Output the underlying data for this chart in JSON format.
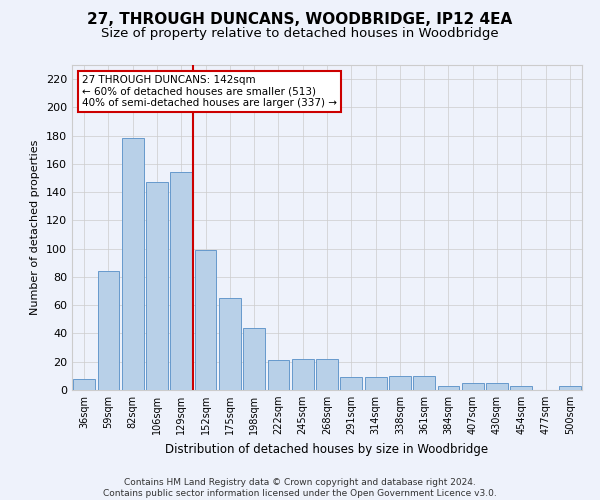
{
  "title": "27, THROUGH DUNCANS, WOODBRIDGE, IP12 4EA",
  "subtitle": "Size of property relative to detached houses in Woodbridge",
  "xlabel": "Distribution of detached houses by size in Woodbridge",
  "ylabel": "Number of detached properties",
  "categories": [
    "36sqm",
    "59sqm",
    "82sqm",
    "106sqm",
    "129sqm",
    "152sqm",
    "175sqm",
    "198sqm",
    "222sqm",
    "245sqm",
    "268sqm",
    "291sqm",
    "314sqm",
    "338sqm",
    "361sqm",
    "384sqm",
    "407sqm",
    "430sqm",
    "454sqm",
    "477sqm",
    "500sqm"
  ],
  "values": [
    8,
    84,
    178,
    147,
    154,
    99,
    65,
    44,
    21,
    22,
    22,
    9,
    9,
    10,
    10,
    3,
    5,
    5,
    3,
    0,
    3
  ],
  "bar_color": "#b8d0e8",
  "bar_edge_color": "#6699cc",
  "vline_x": 4.5,
  "vline_color": "#cc0000",
  "annotation_text": "27 THROUGH DUNCANS: 142sqm\n← 60% of detached houses are smaller (513)\n40% of semi-detached houses are larger (337) →",
  "annotation_box_color": "#ffffff",
  "annotation_box_edge": "#cc0000",
  "ylim": [
    0,
    230
  ],
  "yticks": [
    0,
    20,
    40,
    60,
    80,
    100,
    120,
    140,
    160,
    180,
    200,
    220
  ],
  "footer": "Contains HM Land Registry data © Crown copyright and database right 2024.\nContains public sector information licensed under the Open Government Licence v3.0.",
  "bg_color": "#eef2fb",
  "title_fontsize": 11,
  "subtitle_fontsize": 9.5,
  "footer_fontsize": 6.5
}
